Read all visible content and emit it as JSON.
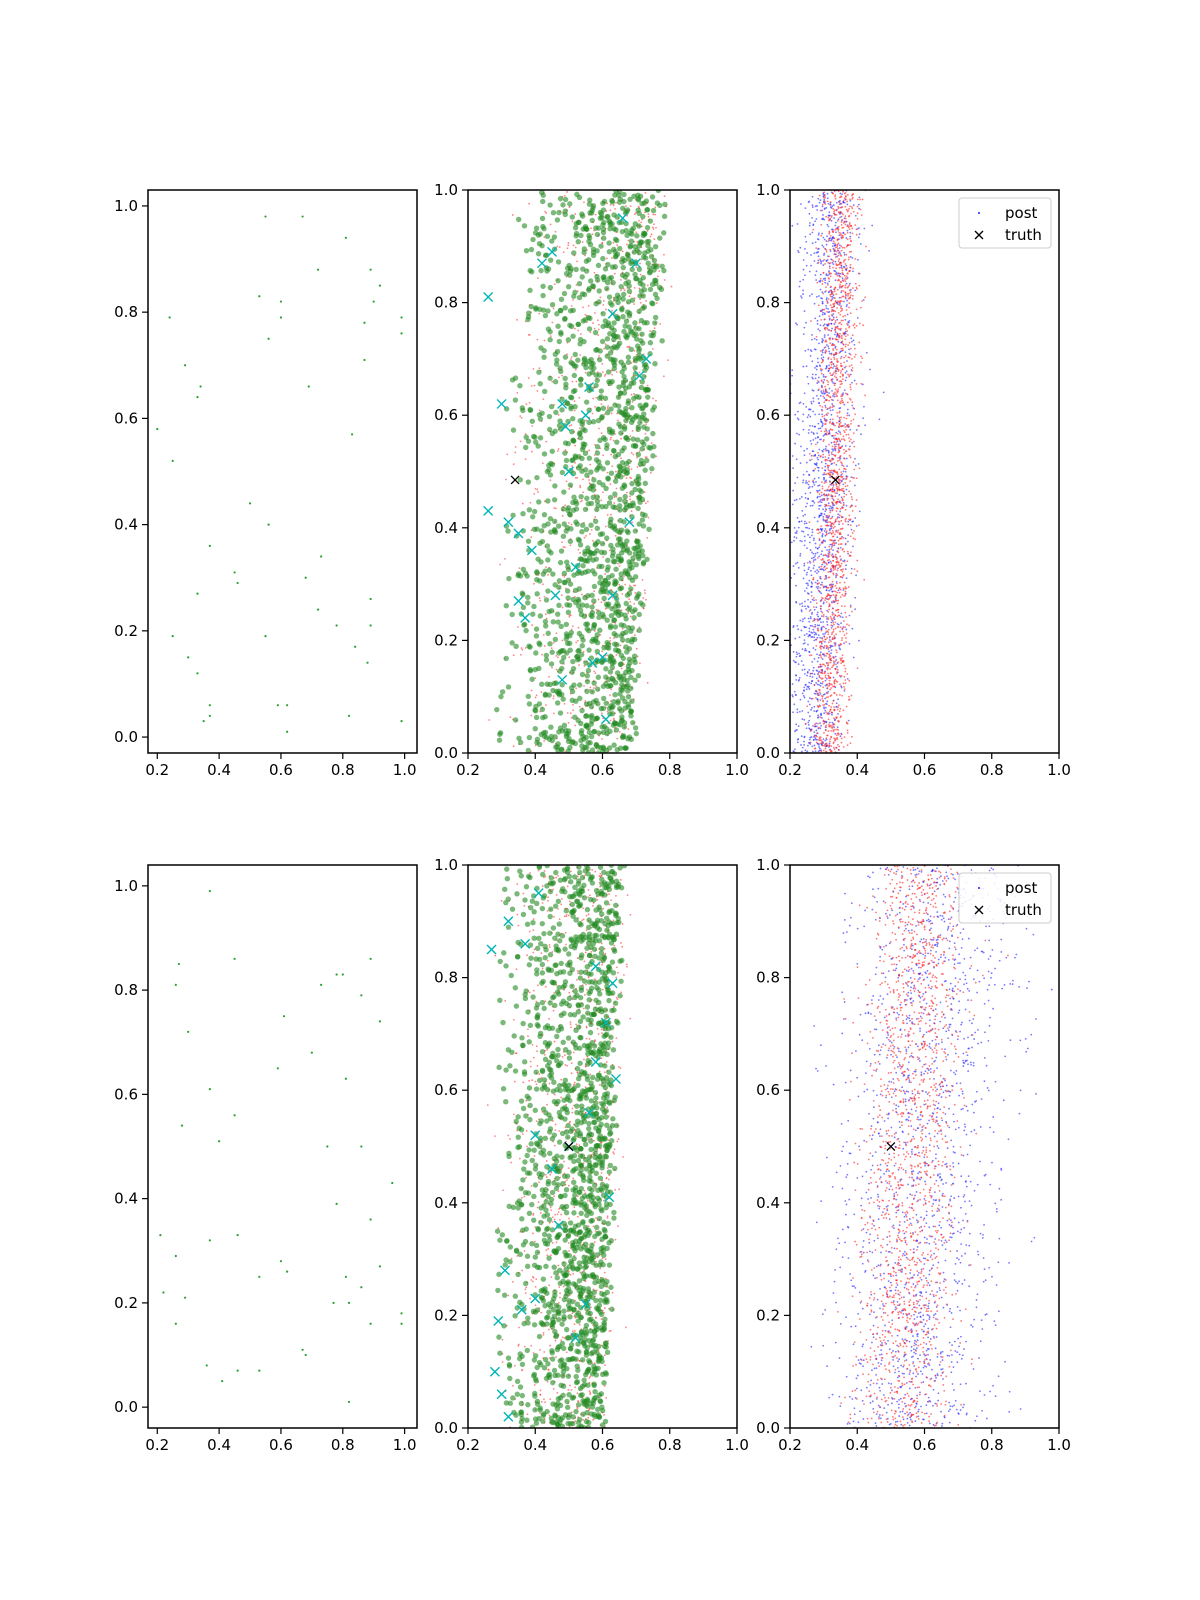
{
  "colors": {
    "prior": "#2ca02c",
    "samples": "#228b22",
    "accepted": "#00b5b5",
    "post_red": "#ff2020",
    "post_blue": "#2020ff",
    "truth": "#000000"
  },
  "legend": {
    "entries": [
      "post",
      "truth"
    ]
  },
  "chart_data": [
    {
      "type": "scatter",
      "panel": "top-left",
      "xlim": [
        0.17,
        1.04
      ],
      "ylim": [
        -0.03,
        1.03
      ],
      "xticks": [
        "0.2",
        "0.4",
        "0.6",
        "0.8",
        "1.0"
      ],
      "yticks": [
        "0.0",
        "0.2",
        "0.4",
        "0.6",
        "0.8",
        "1.0"
      ],
      "series": [
        {
          "role": "prior",
          "points": [
            [
              0.55,
              0.98
            ],
            [
              0.67,
              0.98
            ],
            [
              0.81,
              0.94
            ],
            [
              0.72,
              0.88
            ],
            [
              0.89,
              0.88
            ],
            [
              0.92,
              0.85
            ],
            [
              0.53,
              0.83
            ],
            [
              0.6,
              0.82
            ],
            [
              0.9,
              0.82
            ],
            [
              0.99,
              0.79
            ],
            [
              0.24,
              0.79
            ],
            [
              0.6,
              0.79
            ],
            [
              0.87,
              0.78
            ],
            [
              0.99,
              0.76
            ],
            [
              0.56,
              0.75
            ],
            [
              0.87,
              0.71
            ],
            [
              0.29,
              0.7
            ],
            [
              0.69,
              0.66
            ],
            [
              0.34,
              0.66
            ],
            [
              0.33,
              0.64
            ],
            [
              0.2,
              0.58
            ],
            [
              0.83,
              0.57
            ],
            [
              0.25,
              0.52
            ],
            [
              0.5,
              0.44
            ],
            [
              0.56,
              0.4
            ],
            [
              0.37,
              0.36
            ],
            [
              0.73,
              0.34
            ],
            [
              0.45,
              0.31
            ],
            [
              0.46,
              0.29
            ],
            [
              0.68,
              0.3
            ],
            [
              0.33,
              0.27
            ],
            [
              0.89,
              0.26
            ],
            [
              0.72,
              0.24
            ],
            [
              0.78,
              0.21
            ],
            [
              0.89,
              0.21
            ],
            [
              0.25,
              0.19
            ],
            [
              0.55,
              0.19
            ],
            [
              0.84,
              0.17
            ],
            [
              0.3,
              0.15
            ],
            [
              0.88,
              0.14
            ],
            [
              0.33,
              0.12
            ],
            [
              0.37,
              0.06
            ],
            [
              0.62,
              0.06
            ],
            [
              0.59,
              0.06
            ],
            [
              0.37,
              0.04
            ],
            [
              0.82,
              0.04
            ],
            [
              0.35,
              0.03
            ],
            [
              0.99,
              0.03
            ],
            [
              0.62,
              0.01
            ]
          ]
        }
      ]
    },
    {
      "type": "scatter",
      "panel": "top-middle",
      "xlim": [
        0.2,
        1.0
      ],
      "ylim": [
        0.0,
        1.0
      ],
      "xticks": [
        "0.2",
        "0.4",
        "0.6",
        "0.8",
        "1.0"
      ],
      "yticks": [
        "0.0",
        "0.2",
        "0.4",
        "0.6",
        "0.8",
        "1.0"
      ],
      "series": [
        {
          "role": "accepted",
          "points": [
            [
              0.26,
              0.81
            ],
            [
              0.45,
              0.89
            ],
            [
              0.42,
              0.87
            ],
            [
              0.66,
              0.95
            ],
            [
              0.7,
              0.87
            ],
            [
              0.63,
              0.78
            ],
            [
              0.71,
              0.67
            ],
            [
              0.73,
              0.7
            ],
            [
              0.48,
              0.62
            ],
            [
              0.56,
              0.65
            ],
            [
              0.49,
              0.58
            ],
            [
              0.26,
              0.43
            ],
            [
              0.32,
              0.41
            ],
            [
              0.35,
              0.39
            ],
            [
              0.39,
              0.36
            ],
            [
              0.3,
              0.62
            ],
            [
              0.35,
              0.27
            ],
            [
              0.37,
              0.24
            ],
            [
              0.46,
              0.28
            ],
            [
              0.52,
              0.33
            ],
            [
              0.57,
              0.16
            ],
            [
              0.6,
              0.17
            ],
            [
              0.63,
              0.28
            ],
            [
              0.68,
              0.41
            ],
            [
              0.5,
              0.5
            ],
            [
              0.55,
              0.6
            ],
            [
              0.48,
              0.13
            ],
            [
              0.61,
              0.06
            ]
          ]
        },
        {
          "role": "truth",
          "points": [
            [
              0.34,
              0.485
            ]
          ]
        }
      ],
      "cloud": {
        "n_samples": 1500,
        "n_red": 900,
        "x_left": 0.27,
        "x_left_slope": 0.05,
        "x_right": 0.7,
        "x_right_slope": 0.11,
        "x_peak": 0.66
      }
    },
    {
      "type": "scatter",
      "panel": "top-right",
      "xlim": [
        0.2,
        1.0
      ],
      "ylim": [
        0.0,
        1.0
      ],
      "xticks": [
        "0.2",
        "0.4",
        "0.6",
        "0.8",
        "1.0"
      ],
      "yticks": [
        "0.0",
        "0.2",
        "0.4",
        "0.6",
        "0.8",
        "1.0"
      ],
      "series": [
        {
          "role": "truth",
          "points": [
            [
              0.335,
              0.485
            ]
          ]
        }
      ],
      "cloud": {
        "n_blue": 1600,
        "n_red": 1600,
        "blue_center": 0.3,
        "blue_spread": 0.045,
        "red_center": 0.335,
        "red_spread": 0.028,
        "slope": 0.06
      },
      "legend": "top-right"
    },
    {
      "type": "scatter",
      "panel": "bottom-left",
      "xlim": [
        0.17,
        1.04
      ],
      "ylim": [
        -0.04,
        1.04
      ],
      "xticks": [
        "0.2",
        "0.4",
        "0.6",
        "0.8",
        "1.0"
      ],
      "yticks": [
        "0.0",
        "0.2",
        "0.4",
        "0.6",
        "0.8",
        "1.0"
      ],
      "series": [
        {
          "role": "prior",
          "points": [
            [
              0.37,
              0.99
            ],
            [
              0.27,
              0.85
            ],
            [
              0.45,
              0.86
            ],
            [
              0.26,
              0.81
            ],
            [
              0.89,
              0.86
            ],
            [
              0.78,
              0.83
            ],
            [
              0.8,
              0.83
            ],
            [
              0.73,
              0.81
            ],
            [
              0.86,
              0.79
            ],
            [
              0.92,
              0.74
            ],
            [
              0.61,
              0.75
            ],
            [
              0.3,
              0.72
            ],
            [
              0.7,
              0.68
            ],
            [
              0.59,
              0.65
            ],
            [
              0.81,
              0.63
            ],
            [
              0.37,
              0.61
            ],
            [
              0.45,
              0.56
            ],
            [
              0.28,
              0.54
            ],
            [
              0.4,
              0.51
            ],
            [
              0.75,
              0.5
            ],
            [
              0.86,
              0.5
            ],
            [
              0.96,
              0.43
            ],
            [
              0.78,
              0.39
            ],
            [
              0.89,
              0.36
            ],
            [
              0.21,
              0.33
            ],
            [
              0.37,
              0.32
            ],
            [
              0.46,
              0.33
            ],
            [
              0.26,
              0.29
            ],
            [
              0.6,
              0.28
            ],
            [
              0.92,
              0.27
            ],
            [
              0.62,
              0.26
            ],
            [
              0.53,
              0.25
            ],
            [
              0.81,
              0.25
            ],
            [
              0.86,
              0.23
            ],
            [
              0.22,
              0.22
            ],
            [
              0.29,
              0.21
            ],
            [
              0.77,
              0.2
            ],
            [
              0.82,
              0.2
            ],
            [
              0.99,
              0.18
            ],
            [
              0.99,
              0.16
            ],
            [
              0.26,
              0.16
            ],
            [
              0.89,
              0.16
            ],
            [
              0.67,
              0.11
            ],
            [
              0.68,
              0.1
            ],
            [
              0.36,
              0.08
            ],
            [
              0.46,
              0.07
            ],
            [
              0.53,
              0.07
            ],
            [
              0.41,
              0.05
            ],
            [
              0.82,
              0.01
            ]
          ]
        }
      ]
    },
    {
      "type": "scatter",
      "panel": "bottom-middle",
      "xlim": [
        0.2,
        1.0
      ],
      "ylim": [
        0.0,
        1.0
      ],
      "xticks": [
        "0.2",
        "0.4",
        "0.6",
        "0.8",
        "1.0"
      ],
      "yticks": [
        "0.0",
        "0.2",
        "0.4",
        "0.6",
        "0.8",
        "1.0"
      ],
      "series": [
        {
          "role": "accepted",
          "points": [
            [
              0.27,
              0.85
            ],
            [
              0.32,
              0.9
            ],
            [
              0.41,
              0.95
            ],
            [
              0.37,
              0.86
            ],
            [
              0.58,
              0.82
            ],
            [
              0.63,
              0.79
            ],
            [
              0.61,
              0.72
            ],
            [
              0.4,
              0.52
            ],
            [
              0.45,
              0.46
            ],
            [
              0.5,
              0.5
            ],
            [
              0.58,
              0.65
            ],
            [
              0.31,
              0.28
            ],
            [
              0.36,
              0.21
            ],
            [
              0.29,
              0.19
            ],
            [
              0.4,
              0.23
            ],
            [
              0.28,
              0.1
            ],
            [
              0.3,
              0.06
            ],
            [
              0.32,
              0.02
            ],
            [
              0.47,
              0.36
            ],
            [
              0.55,
              0.22
            ],
            [
              0.52,
              0.16
            ],
            [
              0.62,
              0.41
            ],
            [
              0.64,
              0.62
            ],
            [
              0.56,
              0.56
            ]
          ]
        },
        {
          "role": "truth",
          "points": [
            [
              0.5,
              0.5
            ]
          ]
        }
      ],
      "cloud": {
        "n_samples": 1500,
        "n_red": 900,
        "x_left": 0.27,
        "x_left_slope": 0.02,
        "x_right": 0.62,
        "x_right_slope": 0.06,
        "x_peak": 0.58
      }
    },
    {
      "type": "scatter",
      "panel": "bottom-right",
      "xlim": [
        0.2,
        1.0
      ],
      "ylim": [
        0.0,
        1.0
      ],
      "xticks": [
        "0.2",
        "0.4",
        "0.6",
        "0.8",
        "1.0"
      ],
      "yticks": [
        "0.0",
        "0.2",
        "0.4",
        "0.6",
        "0.8",
        "1.0"
      ],
      "series": [
        {
          "role": "truth",
          "points": [
            [
              0.5,
              0.5
            ]
          ]
        }
      ],
      "cloud": {
        "n_blue": 1600,
        "n_red": 1600,
        "blue_center": 0.6,
        "blue_spread": 0.12,
        "red_center": 0.56,
        "red_spread": 0.07,
        "slope": 0.1
      },
      "legend": "top-right"
    }
  ]
}
